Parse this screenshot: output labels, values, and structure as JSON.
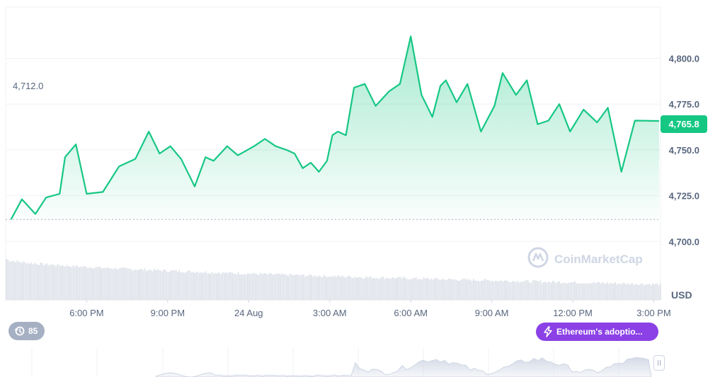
{
  "chart_data": {
    "type": "area",
    "currency": "USD",
    "open_price_label": "4,712.0",
    "current_price_label": "4,765.8",
    "ylim": [
      4692,
      4828
    ],
    "y_ticks": [
      "4,800.0",
      "4,775.0",
      "4,750.0",
      "4,725.0",
      "4,700.0"
    ],
    "x_ticks": [
      "6:00 PM",
      "9:00 PM",
      "24 Aug",
      "3:00 AM",
      "6:00 AM",
      "9:00 AM",
      "12:00 PM",
      "3:00 PM"
    ],
    "x": [
      15.2,
      15.6,
      16.1,
      16.5,
      17.0,
      17.2,
      17.6,
      18.0,
      18.6,
      19.2,
      19.8,
      20.3,
      20.7,
      21.1,
      21.5,
      22.0,
      22.4,
      22.7,
      23.2,
      23.6,
      24.2,
      24.6,
      25.0,
      25.4,
      25.7,
      26.0,
      26.3,
      26.6,
      26.9,
      27.1,
      27.3,
      27.6,
      27.9,
      28.3,
      28.7,
      29.2,
      29.6,
      30.0,
      30.4,
      30.8,
      31.1,
      31.3,
      31.7,
      32.1,
      32.6,
      33.1,
      33.4,
      33.9,
      34.3,
      34.7,
      35.1,
      35.5,
      35.9,
      36.4,
      36.9,
      37.3,
      37.8,
      38.3
    ],
    "values": [
      4712,
      4723,
      4715,
      4724,
      4726,
      4746,
      4753,
      4726,
      4727,
      4741,
      4745,
      4760,
      4748,
      4752,
      4745,
      4730,
      4746,
      4744,
      4752,
      4747,
      4752,
      4756,
      4752,
      4750,
      4748,
      4740,
      4743,
      4738,
      4744,
      4758,
      4760,
      4758,
      4784,
      4786,
      4774,
      4782,
      4786,
      4812,
      4780,
      4768,
      4785,
      4788,
      4776,
      4786,
      4760,
      4774,
      4792,
      4780,
      4788,
      4764,
      4766,
      4775,
      4760,
      4772,
      4765,
      4773,
      4738,
      4766
    ],
    "open_value": 4712,
    "current_value": 4765.8,
    "volume_bars": "decreasing gray histogram",
    "watermark": "CoinMarketCap"
  },
  "badges": {
    "history_count": "85",
    "news_title": "Ethereum's adoptio..."
  },
  "colors": {
    "line": "#16c784",
    "price_tag": "#16c784",
    "news_badge": "#8b41e6",
    "history_badge": "#a6b0c3",
    "grid": "#eff2f5",
    "axis_text": "#58667e"
  }
}
